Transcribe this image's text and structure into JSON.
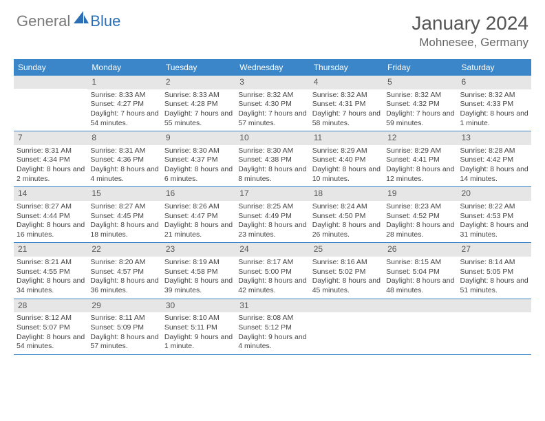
{
  "logo": {
    "text1": "General",
    "text2": "Blue"
  },
  "title": "January 2024",
  "location": "Mohnesee, Germany",
  "weekdays": [
    "Sunday",
    "Monday",
    "Tuesday",
    "Wednesday",
    "Thursday",
    "Friday",
    "Saturday"
  ],
  "colors": {
    "header_bar": "#3a86c8",
    "daynum_bg": "#e6e6e6",
    "row_border": "#3a86c8",
    "logo_gray": "#7a7a7a",
    "logo_blue": "#2d6fb5"
  },
  "weeks": [
    [
      {
        "n": "",
        "sunrise": "",
        "sunset": "",
        "daylight": ""
      },
      {
        "n": "1",
        "sunrise": "Sunrise: 8:33 AM",
        "sunset": "Sunset: 4:27 PM",
        "daylight": "Daylight: 7 hours and 54 minutes."
      },
      {
        "n": "2",
        "sunrise": "Sunrise: 8:33 AM",
        "sunset": "Sunset: 4:28 PM",
        "daylight": "Daylight: 7 hours and 55 minutes."
      },
      {
        "n": "3",
        "sunrise": "Sunrise: 8:32 AM",
        "sunset": "Sunset: 4:30 PM",
        "daylight": "Daylight: 7 hours and 57 minutes."
      },
      {
        "n": "4",
        "sunrise": "Sunrise: 8:32 AM",
        "sunset": "Sunset: 4:31 PM",
        "daylight": "Daylight: 7 hours and 58 minutes."
      },
      {
        "n": "5",
        "sunrise": "Sunrise: 8:32 AM",
        "sunset": "Sunset: 4:32 PM",
        "daylight": "Daylight: 7 hours and 59 minutes."
      },
      {
        "n": "6",
        "sunrise": "Sunrise: 8:32 AM",
        "sunset": "Sunset: 4:33 PM",
        "daylight": "Daylight: 8 hours and 1 minute."
      }
    ],
    [
      {
        "n": "7",
        "sunrise": "Sunrise: 8:31 AM",
        "sunset": "Sunset: 4:34 PM",
        "daylight": "Daylight: 8 hours and 2 minutes."
      },
      {
        "n": "8",
        "sunrise": "Sunrise: 8:31 AM",
        "sunset": "Sunset: 4:36 PM",
        "daylight": "Daylight: 8 hours and 4 minutes."
      },
      {
        "n": "9",
        "sunrise": "Sunrise: 8:30 AM",
        "sunset": "Sunset: 4:37 PM",
        "daylight": "Daylight: 8 hours and 6 minutes."
      },
      {
        "n": "10",
        "sunrise": "Sunrise: 8:30 AM",
        "sunset": "Sunset: 4:38 PM",
        "daylight": "Daylight: 8 hours and 8 minutes."
      },
      {
        "n": "11",
        "sunrise": "Sunrise: 8:29 AM",
        "sunset": "Sunset: 4:40 PM",
        "daylight": "Daylight: 8 hours and 10 minutes."
      },
      {
        "n": "12",
        "sunrise": "Sunrise: 8:29 AM",
        "sunset": "Sunset: 4:41 PM",
        "daylight": "Daylight: 8 hours and 12 minutes."
      },
      {
        "n": "13",
        "sunrise": "Sunrise: 8:28 AM",
        "sunset": "Sunset: 4:42 PM",
        "daylight": "Daylight: 8 hours and 14 minutes."
      }
    ],
    [
      {
        "n": "14",
        "sunrise": "Sunrise: 8:27 AM",
        "sunset": "Sunset: 4:44 PM",
        "daylight": "Daylight: 8 hours and 16 minutes."
      },
      {
        "n": "15",
        "sunrise": "Sunrise: 8:27 AM",
        "sunset": "Sunset: 4:45 PM",
        "daylight": "Daylight: 8 hours and 18 minutes."
      },
      {
        "n": "16",
        "sunrise": "Sunrise: 8:26 AM",
        "sunset": "Sunset: 4:47 PM",
        "daylight": "Daylight: 8 hours and 21 minutes."
      },
      {
        "n": "17",
        "sunrise": "Sunrise: 8:25 AM",
        "sunset": "Sunset: 4:49 PM",
        "daylight": "Daylight: 8 hours and 23 minutes."
      },
      {
        "n": "18",
        "sunrise": "Sunrise: 8:24 AM",
        "sunset": "Sunset: 4:50 PM",
        "daylight": "Daylight: 8 hours and 26 minutes."
      },
      {
        "n": "19",
        "sunrise": "Sunrise: 8:23 AM",
        "sunset": "Sunset: 4:52 PM",
        "daylight": "Daylight: 8 hours and 28 minutes."
      },
      {
        "n": "20",
        "sunrise": "Sunrise: 8:22 AM",
        "sunset": "Sunset: 4:53 PM",
        "daylight": "Daylight: 8 hours and 31 minutes."
      }
    ],
    [
      {
        "n": "21",
        "sunrise": "Sunrise: 8:21 AM",
        "sunset": "Sunset: 4:55 PM",
        "daylight": "Daylight: 8 hours and 34 minutes."
      },
      {
        "n": "22",
        "sunrise": "Sunrise: 8:20 AM",
        "sunset": "Sunset: 4:57 PM",
        "daylight": "Daylight: 8 hours and 36 minutes."
      },
      {
        "n": "23",
        "sunrise": "Sunrise: 8:19 AM",
        "sunset": "Sunset: 4:58 PM",
        "daylight": "Daylight: 8 hours and 39 minutes."
      },
      {
        "n": "24",
        "sunrise": "Sunrise: 8:17 AM",
        "sunset": "Sunset: 5:00 PM",
        "daylight": "Daylight: 8 hours and 42 minutes."
      },
      {
        "n": "25",
        "sunrise": "Sunrise: 8:16 AM",
        "sunset": "Sunset: 5:02 PM",
        "daylight": "Daylight: 8 hours and 45 minutes."
      },
      {
        "n": "26",
        "sunrise": "Sunrise: 8:15 AM",
        "sunset": "Sunset: 5:04 PM",
        "daylight": "Daylight: 8 hours and 48 minutes."
      },
      {
        "n": "27",
        "sunrise": "Sunrise: 8:14 AM",
        "sunset": "Sunset: 5:05 PM",
        "daylight": "Daylight: 8 hours and 51 minutes."
      }
    ],
    [
      {
        "n": "28",
        "sunrise": "Sunrise: 8:12 AM",
        "sunset": "Sunset: 5:07 PM",
        "daylight": "Daylight: 8 hours and 54 minutes."
      },
      {
        "n": "29",
        "sunrise": "Sunrise: 8:11 AM",
        "sunset": "Sunset: 5:09 PM",
        "daylight": "Daylight: 8 hours and 57 minutes."
      },
      {
        "n": "30",
        "sunrise": "Sunrise: 8:10 AM",
        "sunset": "Sunset: 5:11 PM",
        "daylight": "Daylight: 9 hours and 1 minute."
      },
      {
        "n": "31",
        "sunrise": "Sunrise: 8:08 AM",
        "sunset": "Sunset: 5:12 PM",
        "daylight": "Daylight: 9 hours and 4 minutes."
      },
      {
        "n": "",
        "sunrise": "",
        "sunset": "",
        "daylight": ""
      },
      {
        "n": "",
        "sunrise": "",
        "sunset": "",
        "daylight": ""
      },
      {
        "n": "",
        "sunrise": "",
        "sunset": "",
        "daylight": ""
      }
    ]
  ]
}
